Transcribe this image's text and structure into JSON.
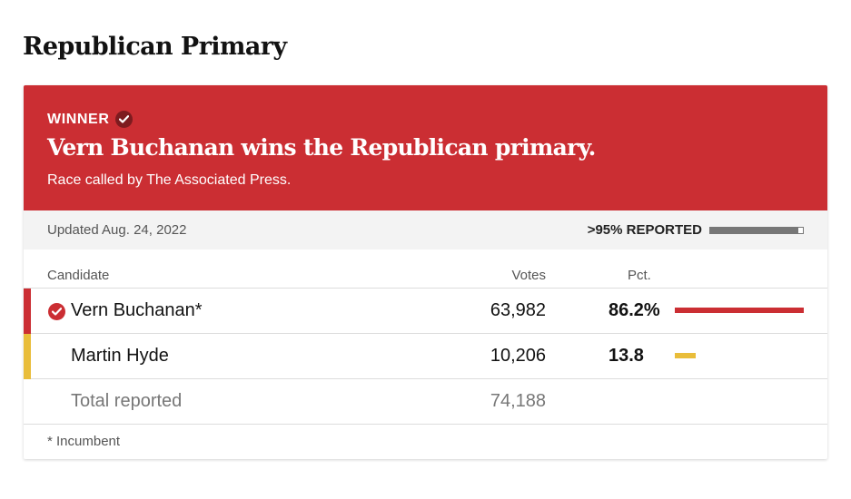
{
  "page": {
    "title": "Republican Primary"
  },
  "banner": {
    "winner_label": "WINNER",
    "headline": "Vern Buchanan wins the Republican primary.",
    "called_by": "Race called by The Associated Press.",
    "color": "#cb2e33",
    "icon": "checkmark-icon"
  },
  "status": {
    "updated": "Updated Aug. 24, 2022",
    "reported_label": ">95% REPORTED",
    "reported_fraction": 0.95
  },
  "table": {
    "headers": {
      "candidate": "Candidate",
      "votes": "Votes",
      "pct": "Pct."
    },
    "rows": [
      {
        "name": "Vern Buchanan*",
        "votes": "63,982",
        "pct": "86.2%",
        "pct_value": 86.2,
        "color": "#cb2e33",
        "winner": true
      },
      {
        "name": "Martin Hyde",
        "votes": "10,206",
        "pct": "13.8",
        "pct_value": 13.8,
        "color": "#e9bd3a",
        "winner": false
      }
    ],
    "total": {
      "label": "Total reported",
      "votes": "74,188"
    }
  },
  "footnote": "* Incumbent"
}
